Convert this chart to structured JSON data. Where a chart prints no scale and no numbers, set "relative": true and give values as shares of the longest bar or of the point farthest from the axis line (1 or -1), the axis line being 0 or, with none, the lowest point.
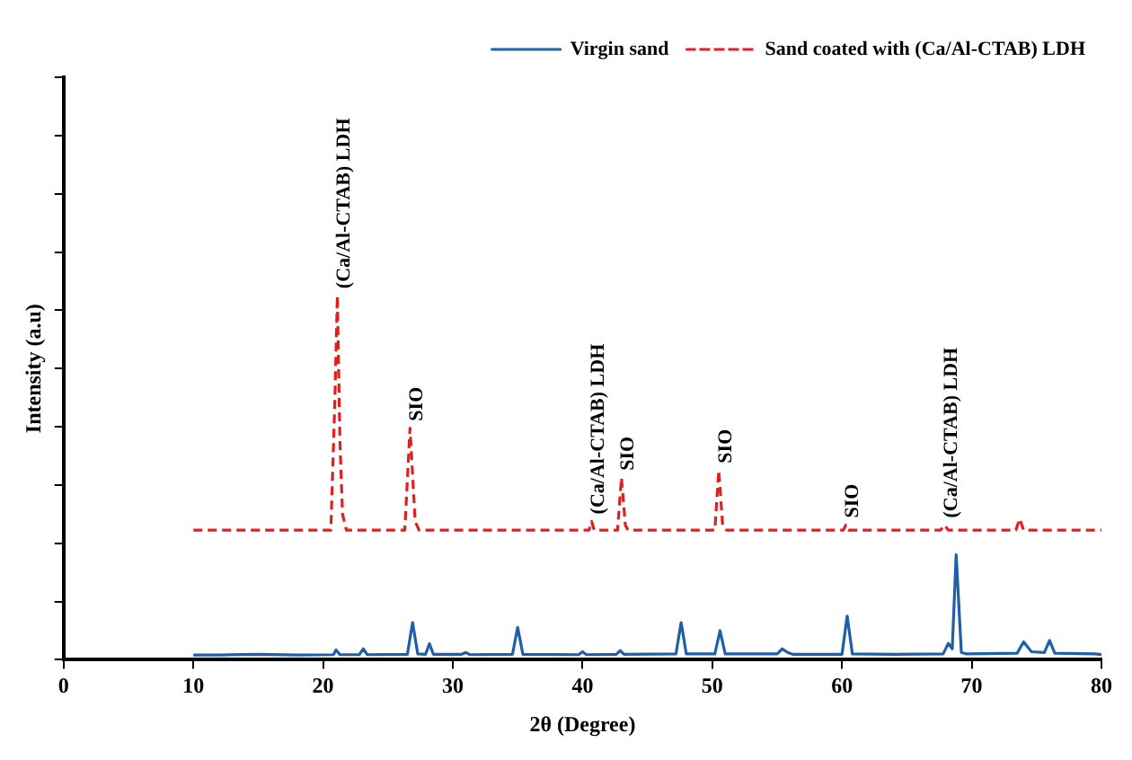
{
  "chart_data": {
    "type": "line",
    "relative": true,
    "xlabel": "2θ (Degree)",
    "ylabel": "Intensity (a.u)",
    "xlim": [
      0,
      80
    ],
    "xticks": [
      0,
      10,
      20,
      30,
      40,
      50,
      60,
      70,
      80
    ],
    "grid": false,
    "legend": "top right",
    "marker": "none",
    "series": [
      {
        "name": "Virgin sand",
        "color": "#1f5fa8",
        "line_style": "solid",
        "x": [
          10,
          12,
          15,
          18,
          20.8,
          21,
          21.3,
          22.8,
          23.1,
          23.4,
          26.5,
          26.9,
          27.3,
          27.9,
          28.2,
          28.5,
          30.7,
          31,
          31.3,
          34.6,
          35,
          35.4,
          39.7,
          40,
          40.3,
          42.6,
          42.9,
          43.2,
          47.2,
          47.6,
          48,
          50.2,
          50.6,
          51,
          55,
          55.4,
          55.8,
          56.2,
          60,
          60.4,
          60.8,
          64,
          67.8,
          68.2,
          68.5,
          68.8,
          69.2,
          69.6,
          73.5,
          74,
          74.6,
          75.6,
          76,
          76.4,
          79.5,
          80
        ],
        "values": [
          0.013,
          0.013,
          0.015,
          0.013,
          0.014,
          0.027,
          0.014,
          0.014,
          0.03,
          0.014,
          0.015,
          0.102,
          0.016,
          0.015,
          0.044,
          0.015,
          0.015,
          0.02,
          0.014,
          0.015,
          0.089,
          0.015,
          0.014,
          0.022,
          0.014,
          0.015,
          0.025,
          0.015,
          0.016,
          0.102,
          0.016,
          0.016,
          0.08,
          0.016,
          0.016,
          0.03,
          0.02,
          0.015,
          0.015,
          0.12,
          0.016,
          0.015,
          0.016,
          0.045,
          0.03,
          0.289,
          0.02,
          0.016,
          0.018,
          0.049,
          0.022,
          0.02,
          0.053,
          0.018,
          0.016,
          0.014
        ]
      },
      {
        "name": "Sand coated with (Ca/Al-CTAB) LDH",
        "color": "#e02020",
        "line_style": "dashed",
        "x": [
          10,
          15,
          20.6,
          20.9,
          21.1,
          21.3,
          21.5,
          21.8,
          26.3,
          26.7,
          27.1,
          27.4,
          40.5,
          40.7,
          40.9,
          42.7,
          43,
          43.3,
          43.5,
          50.2,
          50.5,
          50.8,
          51.1,
          60.1,
          60.3,
          60.5,
          67.6,
          67.9,
          68.2,
          73.4,
          73.7,
          74,
          80
        ],
        "values": [
          0.356,
          0.356,
          0.356,
          0.7,
          1,
          0.6,
          0.4,
          0.356,
          0.356,
          0.636,
          0.38,
          0.356,
          0.356,
          0.38,
          0.356,
          0.356,
          0.5,
          0.37,
          0.356,
          0.356,
          0.52,
          0.37,
          0.356,
          0.356,
          0.37,
          0.356,
          0.356,
          0.37,
          0.356,
          0.356,
          0.387,
          0.356,
          0.356
        ]
      }
    ],
    "annotations": [
      {
        "text": "(Ca/Al-CTAB) LDH",
        "x": 21.1,
        "y": 1
      },
      {
        "text": "SIO",
        "x": 26.7,
        "y": 0.636
      },
      {
        "text": "(Ca/Al-CTAB) LDH",
        "x": 40.7,
        "y": 0.38
      },
      {
        "text": "SIO",
        "x": 43,
        "y": 0.5
      },
      {
        "text": "SIO",
        "x": 50.5,
        "y": 0.52
      },
      {
        "text": "SIO",
        "x": 60.3,
        "y": 0.37
      },
      {
        "text": "(Ca/Al-CTAB) LDH",
        "x": 67.9,
        "y": 0.37
      }
    ]
  }
}
